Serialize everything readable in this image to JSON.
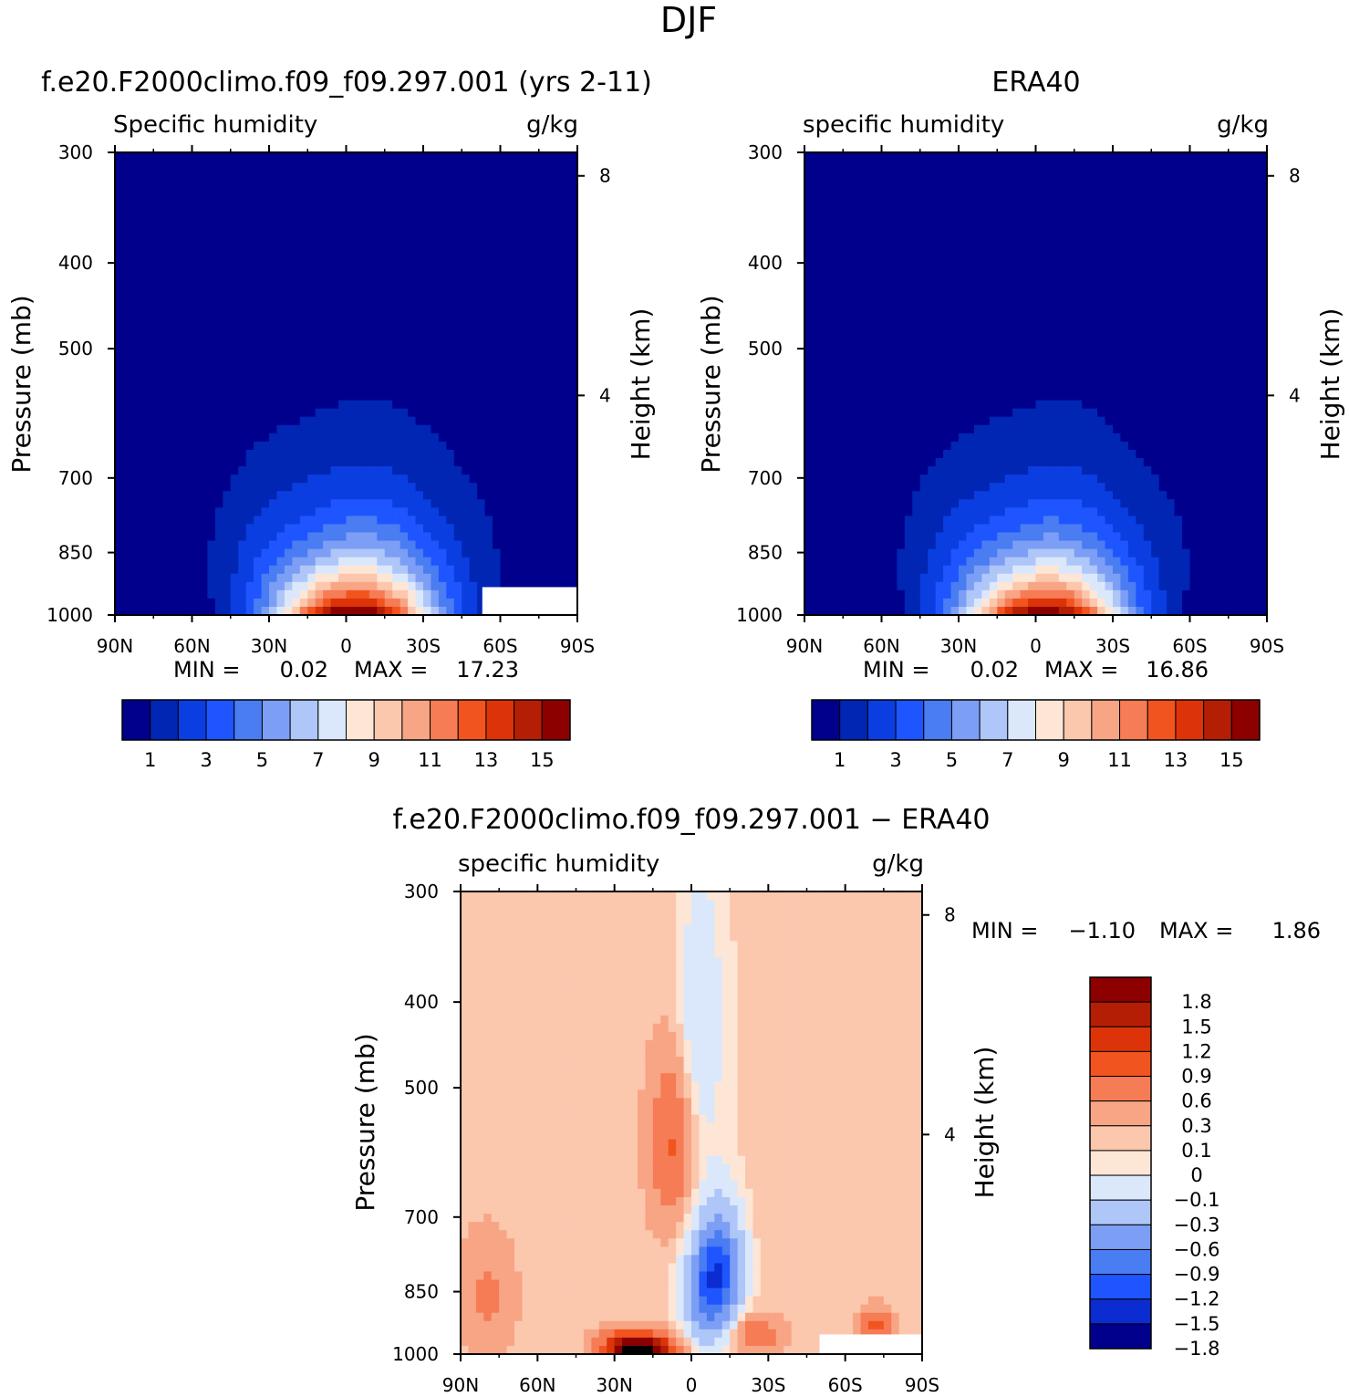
{
  "figure_title": "DJF",
  "colors": {
    "seq_levels": [
      "#00008c",
      "#0026b3",
      "#0a3ee0",
      "#1f55ff",
      "#4a7cf2",
      "#7c9ef5",
      "#aec6f8",
      "#dbe8fb",
      "#fde6d6",
      "#fbc7ad",
      "#f8a585",
      "#f57c55",
      "#f2541f",
      "#dc3408",
      "#b41e05",
      "#8c0000"
    ],
    "diff_levels": [
      "#00008c",
      "#0a2cd0",
      "#1f55ff",
      "#4a7cf2",
      "#7c9ef5",
      "#aec6f8",
      "#dbe8fb",
      "#fde6d6",
      "#fbc7ad",
      "#f8a585",
      "#f57c55",
      "#f2541f",
      "#dc3408",
      "#b41e05",
      "#8c0000"
    ]
  },
  "chart_data": [
    {
      "id": "model",
      "type": "heatmap",
      "title": "f.e20.F2000climo.f09_f09.297.001 (yrs 2-11)",
      "left_label": "Specific humidity",
      "right_label": "g/kg",
      "ylabel": "Pressure (mb)",
      "y2label": "Height (km)",
      "xlim": [
        -90,
        90
      ],
      "ylim": [
        1000,
        300
      ],
      "y_scale": "log",
      "x_ticks": [
        {
          "value": -90,
          "label": "90N"
        },
        {
          "value": -60,
          "label": "60N"
        },
        {
          "value": -30,
          "label": "30N"
        },
        {
          "value": 0,
          "label": "0"
        },
        {
          "value": 30,
          "label": "30S"
        },
        {
          "value": 60,
          "label": "60S"
        },
        {
          "value": 90,
          "label": "90S"
        }
      ],
      "y_ticks": [
        300,
        400,
        500,
        700,
        850,
        1000
      ],
      "y2_ticks": [
        {
          "value": 8,
          "label": "8"
        },
        {
          "value": 4,
          "label": "4"
        }
      ],
      "stats": {
        "min_label": "MIN =",
        "min": "0.02",
        "max_label": "MAX =",
        "max": "17.23"
      },
      "contour_levels": [
        1,
        2,
        3,
        4,
        5,
        6,
        7,
        8,
        9,
        10,
        11,
        12,
        13,
        14,
        15
      ],
      "colorbar_labels": [
        "1",
        "3",
        "5",
        "7",
        "9",
        "11",
        "13",
        "15"
      ],
      "peak": {
        "x": 3,
        "p": 1000,
        "value": 17.23
      },
      "missing_region": {
        "x": [
          53,
          90
        ],
        "p_top": 930
      }
    },
    {
      "id": "obs",
      "type": "heatmap",
      "title": "ERA40",
      "left_label": "specific humidity",
      "right_label": "g/kg",
      "ylabel": "Pressure (mb)",
      "y2label": "Height (km)",
      "xlim": [
        -90,
        90
      ],
      "ylim": [
        1000,
        300
      ],
      "y_scale": "log",
      "x_ticks": [
        {
          "value": -90,
          "label": "90N"
        },
        {
          "value": -60,
          "label": "60N"
        },
        {
          "value": -30,
          "label": "30N"
        },
        {
          "value": 0,
          "label": "0"
        },
        {
          "value": 30,
          "label": "30S"
        },
        {
          "value": 60,
          "label": "60S"
        },
        {
          "value": 90,
          "label": "90S"
        }
      ],
      "y_ticks": [
        300,
        400,
        500,
        700,
        850,
        1000
      ],
      "y2_ticks": [
        {
          "value": 8,
          "label": "8"
        },
        {
          "value": 4,
          "label": "4"
        }
      ],
      "stats": {
        "min_label": "MIN =",
        "min": "0.02",
        "max_label": "MAX =",
        "max": "16.86"
      },
      "contour_levels": [
        1,
        2,
        3,
        4,
        5,
        6,
        7,
        8,
        9,
        10,
        11,
        12,
        13,
        14,
        15
      ],
      "colorbar_labels": [
        "1",
        "3",
        "5",
        "7",
        "9",
        "11",
        "13",
        "15"
      ],
      "peak": {
        "x": 3,
        "p": 1000,
        "value": 16.86
      }
    },
    {
      "id": "diff",
      "type": "heatmap",
      "title": "f.e20.F2000climo.f09_f09.297.001 − ERA40",
      "left_label": "specific humidity",
      "right_label": "g/kg",
      "ylabel": "Pressure (mb)",
      "y2label": "Height (km)",
      "xlim": [
        -90,
        90
      ],
      "ylim": [
        1000,
        300
      ],
      "y_scale": "log",
      "x_ticks": [
        {
          "value": -90,
          "label": "90N"
        },
        {
          "value": -60,
          "label": "60N"
        },
        {
          "value": -30,
          "label": "30N"
        },
        {
          "value": 0,
          "label": "0"
        },
        {
          "value": 30,
          "label": "30S"
        },
        {
          "value": 60,
          "label": "60S"
        },
        {
          "value": 90,
          "label": "90S"
        }
      ],
      "y_ticks": [
        300,
        400,
        500,
        700,
        850,
        1000
      ],
      "y2_ticks": [
        {
          "value": 8,
          "label": "8"
        },
        {
          "value": 4,
          "label": "4"
        }
      ],
      "stats": {
        "min_label": "MIN =",
        "min": "−1.10",
        "max_label": "MAX =",
        "max": "1.86"
      },
      "contour_levels": [
        -1.8,
        -1.5,
        -1.2,
        -0.9,
        -0.6,
        -0.3,
        -0.1,
        0,
        0.1,
        0.3,
        0.6,
        0.9,
        1.2,
        1.5,
        1.8
      ],
      "colorbar_labels": [
        "1.8",
        "1.5",
        "1.2",
        "0.9",
        "0.6",
        "0.3",
        "0.1",
        "0",
        "−0.1",
        "−0.3",
        "−0.6",
        "−0.9",
        "−1.2",
        "−1.5",
        "−1.8"
      ],
      "features": [
        {
          "x": -25,
          "p": 985,
          "value": 1.5
        },
        {
          "x": -15,
          "p": 990,
          "value": 1.2
        },
        {
          "x": -8,
          "p": 580,
          "value": 0.6
        },
        {
          "x": 12,
          "p": 800,
          "value": -1.1
        },
        {
          "x": 5,
          "p": 850,
          "value": -0.9
        },
        {
          "x": 72,
          "p": 930,
          "value": 0.7
        },
        {
          "x": 25,
          "p": 950,
          "value": 0.5
        },
        {
          "x": -80,
          "p": 860,
          "value": 0.3
        },
        {
          "x": 3,
          "p": 420,
          "value": -0.2
        }
      ],
      "missing_region": {
        "x": [
          50,
          90
        ],
        "p_top": 950
      }
    }
  ]
}
